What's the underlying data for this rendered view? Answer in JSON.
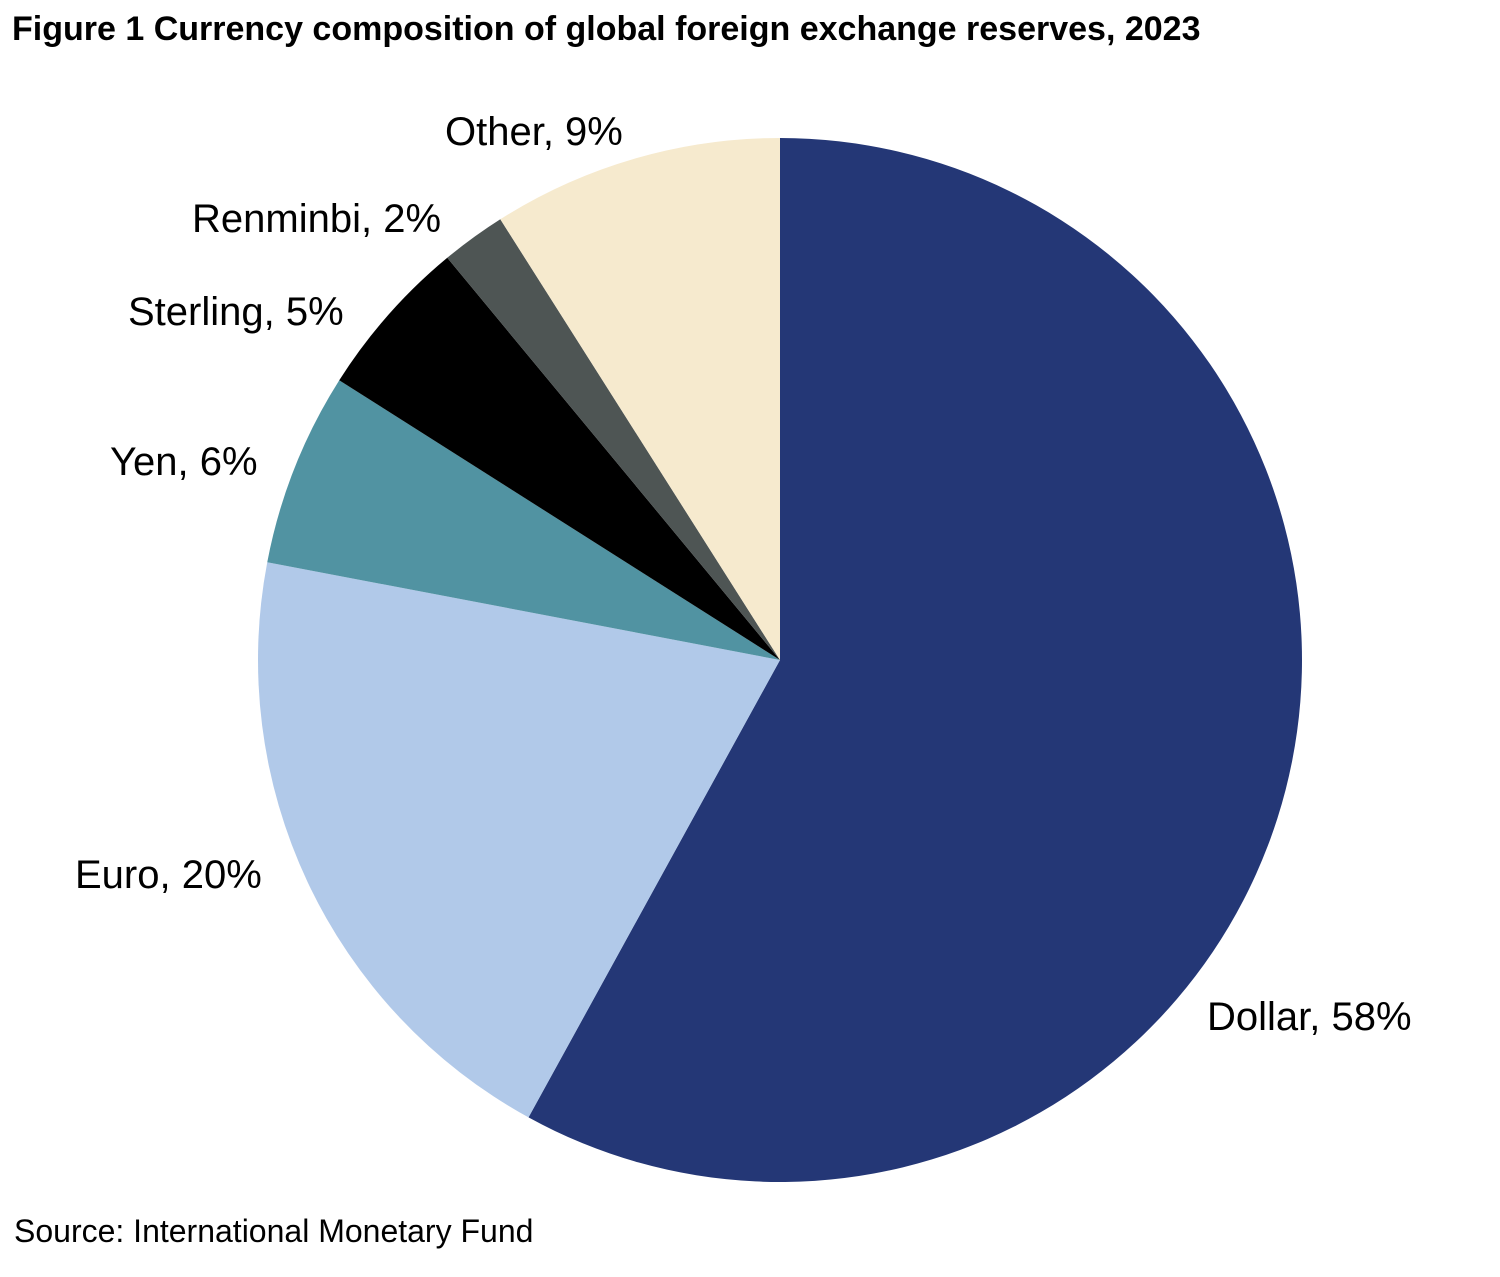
{
  "chart_data": {
    "type": "pie",
    "title": "Figure 1  Currency composition of global foreign exchange reserves, 2023",
    "source": "Source: International Monetary Fund",
    "slices": [
      {
        "name": "Dollar",
        "value": 58,
        "label": "Dollar, 58%",
        "color": "#243776"
      },
      {
        "name": "Euro",
        "value": 20,
        "label": "Euro, 20%",
        "color": "#b1c9e9"
      },
      {
        "name": "Yen",
        "value": 6,
        "label": "Yen, 6%",
        "color": "#5193a2"
      },
      {
        "name": "Sterling",
        "value": 5,
        "label": "Sterling, 5%",
        "color": "#000000"
      },
      {
        "name": "Renminbi",
        "value": 2,
        "label": "Renminbi, 2%",
        "color": "#4e5554"
      },
      {
        "name": "Other",
        "value": 9,
        "label": "Other, 9%",
        "color": "#f6eace"
      }
    ],
    "start_angle": "12 o'clock",
    "direction": "clockwise",
    "labels_outside": true
  }
}
